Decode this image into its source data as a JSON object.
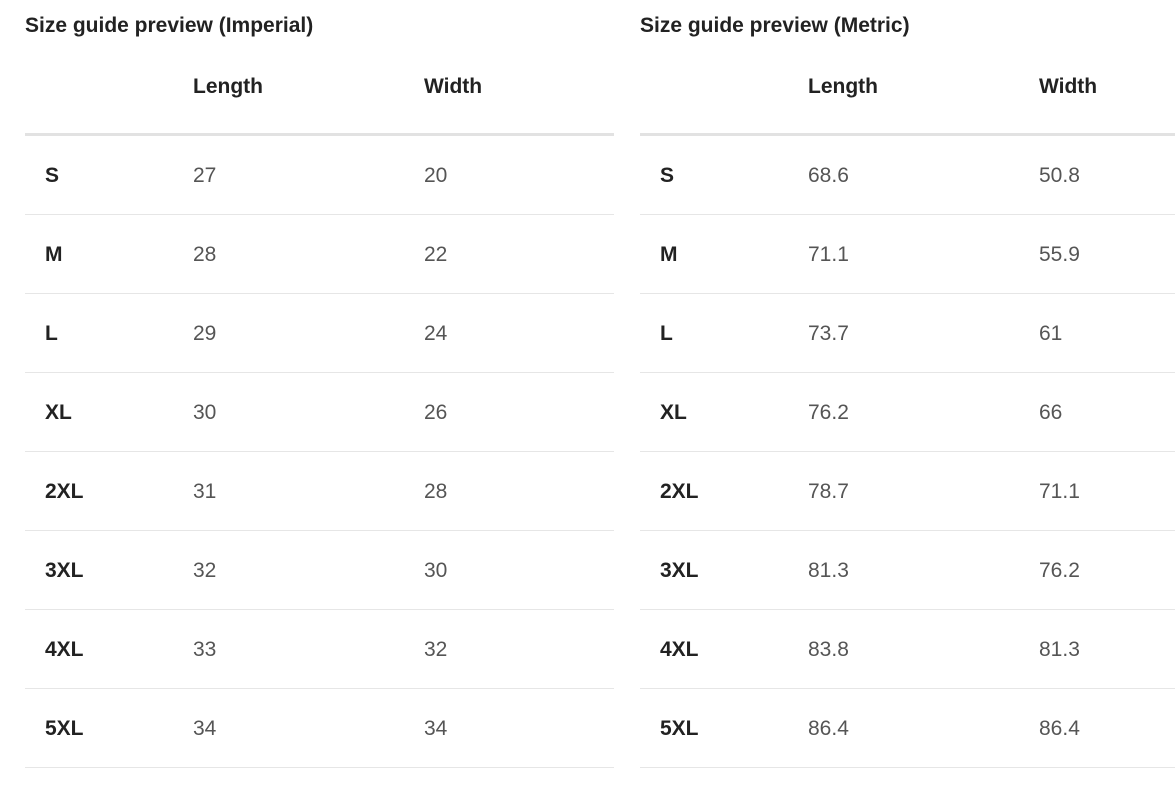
{
  "tables": [
    {
      "title": "Size guide preview (Imperial)",
      "headers": [
        "",
        "Length",
        "Width"
      ],
      "rows": [
        [
          "S",
          "27",
          "20"
        ],
        [
          "M",
          "28",
          "22"
        ],
        [
          "L",
          "29",
          "24"
        ],
        [
          "XL",
          "30",
          "26"
        ],
        [
          "2XL",
          "31",
          "28"
        ],
        [
          "3XL",
          "32",
          "30"
        ],
        [
          "4XL",
          "33",
          "32"
        ],
        [
          "5XL",
          "34",
          "34"
        ]
      ]
    },
    {
      "title": "Size guide preview (Metric)",
      "headers": [
        "",
        "Length",
        "Width"
      ],
      "rows": [
        [
          "S",
          "68.6",
          "50.8"
        ],
        [
          "M",
          "71.1",
          "55.9"
        ],
        [
          "L",
          "73.7",
          "61"
        ],
        [
          "XL",
          "76.2",
          "66"
        ],
        [
          "2XL",
          "78.7",
          "71.1"
        ],
        [
          "3XL",
          "81.3",
          "76.2"
        ],
        [
          "4XL",
          "83.8",
          "81.3"
        ],
        [
          "5XL",
          "86.4",
          "86.4"
        ]
      ]
    }
  ]
}
